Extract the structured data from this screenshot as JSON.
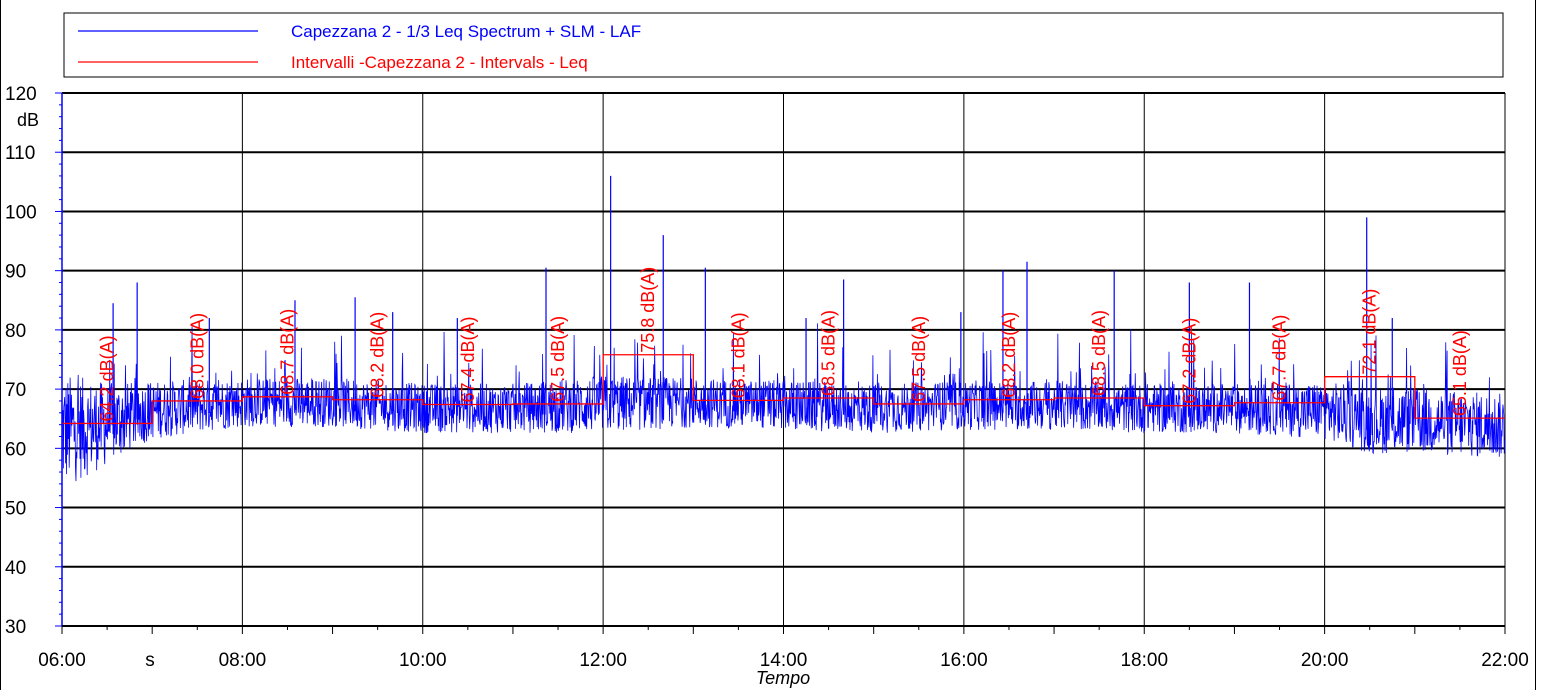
{
  "chart_data": {
    "type": "line",
    "legend": {
      "placement": "top",
      "entries": [
        {
          "label": "Capezzana 2 - 1/3 Leq Spectrum + SLM - LAF",
          "color": "#0000ff"
        },
        {
          "label": "Intervalli -Capezzana 2 - Intervals - Leq",
          "color": "#ff0000"
        }
      ]
    },
    "xlabel": "Tempo",
    "x_unit": "s",
    "ylabel": "dB",
    "ylim": [
      30,
      120
    ],
    "xlim": [
      "06:00",
      "22:00"
    ],
    "grid": true,
    "y_ticks": [
      30,
      40,
      50,
      60,
      70,
      80,
      90,
      100,
      110,
      120
    ],
    "x_ticks": [
      "06:00",
      "08:00",
      "10:00",
      "12:00",
      "14:00",
      "16:00",
      "18:00",
      "20:00",
      "22:00"
    ],
    "series": [
      {
        "name": "Capezzana 2 - 1/3 Leq Spectrum + SLM - LAF",
        "color": "#0000ff",
        "style": "dense-noise",
        "x": [
          "06:00",
          "06:30",
          "07:00",
          "08:00",
          "09:00",
          "10:00",
          "11:00",
          "12:00",
          "13:00",
          "14:00",
          "15:00",
          "16:00",
          "17:00",
          "18:00",
          "19:00",
          "20:00",
          "20:30",
          "21:00",
          "22:00"
        ],
        "baseline": [
          60,
          62,
          65,
          66.5,
          66.5,
          65.5,
          65.5,
          66,
          66.5,
          66,
          65.5,
          66,
          66,
          65.5,
          65.5,
          65,
          63,
          63,
          62
        ],
        "spread": [
          14,
          10,
          7,
          6,
          6,
          6,
          6,
          7,
          6,
          6,
          6,
          6,
          6,
          6,
          6,
          7,
          8,
          8,
          8
        ],
        "peaks": [
          {
            "x": "06:34",
            "y": 84.5
          },
          {
            "x": "06:50",
            "y": 88
          },
          {
            "x": "07:38",
            "y": 82
          },
          {
            "x": "08:35",
            "y": 85
          },
          {
            "x": "09:15",
            "y": 85.5
          },
          {
            "x": "09:40",
            "y": 83
          },
          {
            "x": "10:23",
            "y": 82
          },
          {
            "x": "11:22",
            "y": 90.5
          },
          {
            "x": "12:05",
            "y": 106
          },
          {
            "x": "12:40",
            "y": 96
          },
          {
            "x": "13:08",
            "y": 90.5
          },
          {
            "x": "14:15",
            "y": 82
          },
          {
            "x": "14:40",
            "y": 88.5
          },
          {
            "x": "15:58",
            "y": 83
          },
          {
            "x": "16:26",
            "y": 90
          },
          {
            "x": "16:42",
            "y": 91.5
          },
          {
            "x": "17:40",
            "y": 90
          },
          {
            "x": "18:30",
            "y": 88
          },
          {
            "x": "19:10",
            "y": 88
          },
          {
            "x": "20:28",
            "y": 99
          },
          {
            "x": "20:45",
            "y": 82
          }
        ]
      },
      {
        "name": "Intervalli -Capezzana 2 - Intervals - Leq",
        "color": "#ff0000",
        "style": "step",
        "intervals": [
          {
            "start": "06:00",
            "end": "07:00",
            "value": 64.2,
            "label": "64.2 dB(A)"
          },
          {
            "start": "07:00",
            "end": "08:00",
            "value": 68.0,
            "label": "68.0 dB(A)"
          },
          {
            "start": "08:00",
            "end": "09:00",
            "value": 68.7,
            "label": "68.7 dB(A)"
          },
          {
            "start": "09:00",
            "end": "10:00",
            "value": 68.2,
            "label": "68.2 dB(A)"
          },
          {
            "start": "10:00",
            "end": "11:00",
            "value": 67.4,
            "label": "67.4 dB(A)"
          },
          {
            "start": "11:00",
            "end": "12:00",
            "value": 67.5,
            "label": "67.5 dB(A)"
          },
          {
            "start": "12:00",
            "end": "13:00",
            "value": 75.8,
            "label": "75.8 dB(A)"
          },
          {
            "start": "13:00",
            "end": "14:00",
            "value": 68.1,
            "label": "68.1 dB(A)"
          },
          {
            "start": "14:00",
            "end": "15:00",
            "value": 68.5,
            "label": "68.5 dB(A)"
          },
          {
            "start": "15:00",
            "end": "16:00",
            "value": 67.5,
            "label": "67.5 dB(A)"
          },
          {
            "start": "16:00",
            "end": "17:00",
            "value": 68.2,
            "label": "68.2 dB(A)"
          },
          {
            "start": "17:00",
            "end": "18:00",
            "value": 68.5,
            "label": "68.5 dB(A)"
          },
          {
            "start": "18:00",
            "end": "19:00",
            "value": 67.2,
            "label": "67.2 dB(A)"
          },
          {
            "start": "19:00",
            "end": "20:00",
            "value": 67.7,
            "label": "67.7 dB(A)"
          },
          {
            "start": "20:00",
            "end": "21:00",
            "value": 72.1,
            "label": "72.1 dB(A)"
          },
          {
            "start": "21:00",
            "end": "22:00",
            "value": 65.1,
            "label": "65.1 dB(A)"
          }
        ]
      }
    ]
  }
}
